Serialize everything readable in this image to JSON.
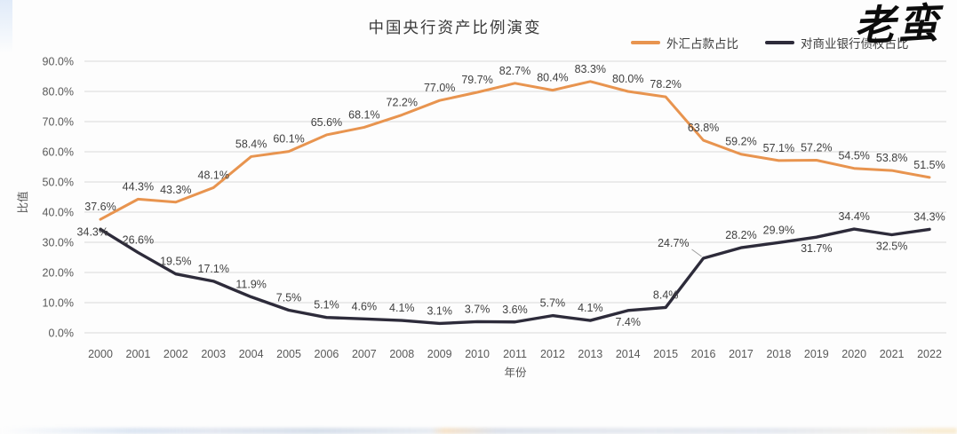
{
  "page": {
    "watermark": "老蛮"
  },
  "chart_data": {
    "type": "line",
    "title": "中国央行资产比例演变",
    "xlabel": "年份",
    "ylabel": "比值",
    "ylim": [
      0,
      90
    ],
    "ytick_step": 10,
    "ytick_suffix": "%",
    "grid": true,
    "legend_position": "top-right",
    "categories": [
      "2000",
      "2001",
      "2002",
      "2003",
      "2004",
      "2005",
      "2006",
      "2007",
      "2008",
      "2009",
      "2010",
      "2011",
      "2012",
      "2013",
      "2014",
      "2015",
      "2016",
      "2017",
      "2018",
      "2019",
      "2020",
      "2021",
      "2022"
    ],
    "series": [
      {
        "name": "外汇占款占比",
        "color": "#E8944F",
        "values": [
          37.6,
          44.3,
          43.3,
          48.1,
          58.4,
          60.1,
          65.6,
          68.1,
          72.2,
          77.0,
          79.7,
          82.7,
          80.4,
          83.3,
          80.0,
          78.2,
          63.8,
          59.2,
          57.1,
          57.2,
          54.5,
          53.8,
          51.5
        ],
        "label_pos": "above"
      },
      {
        "name": "对商业银行债权占比",
        "color": "#2D2B3A",
        "values": [
          34.3,
          26.6,
          19.5,
          17.1,
          11.9,
          7.5,
          5.1,
          4.6,
          4.1,
          3.1,
          3.7,
          3.6,
          5.7,
          4.1,
          7.4,
          8.4,
          24.7,
          28.2,
          29.9,
          31.7,
          34.4,
          32.5,
          34.3
        ],
        "label_pos": [
          "left",
          "above",
          "above",
          "above",
          "above",
          "above",
          "above",
          "above",
          "above",
          "above",
          "above",
          "above",
          "above",
          "above",
          "below",
          "above",
          "callout",
          "above",
          "above",
          "below",
          "above",
          "below",
          "above"
        ]
      }
    ]
  }
}
